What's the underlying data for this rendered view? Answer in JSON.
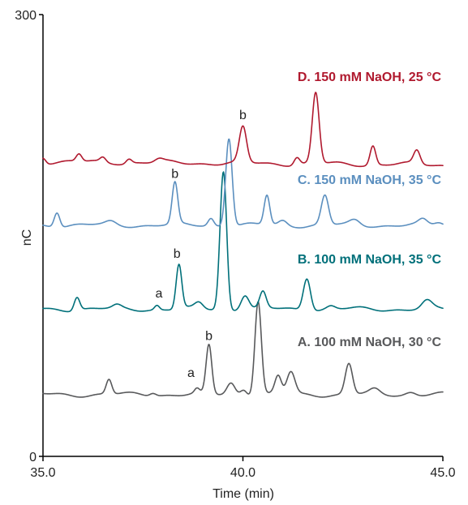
{
  "chart_data": {
    "type": "line",
    "xlabel": "Time (min)",
    "ylabel": "nC",
    "xlim": [
      35.0,
      45.0
    ],
    "ylim": [
      0,
      300
    ],
    "x_ticks": [
      {
        "value": 35.0,
        "label": "35.0"
      },
      {
        "value": 40.0,
        "label": "40.0"
      },
      {
        "value": 45.0,
        "label": "45.0"
      }
    ],
    "y_ticks": [
      {
        "value": 0,
        "label": "0"
      },
      {
        "value": 300,
        "label": "300"
      }
    ],
    "grid": false,
    "series": [
      {
        "name": "A. 100 mM NaOH, 30 °C",
        "color": "#58595b",
        "baseline": 42,
        "drift": 0,
        "peaks": [
          [
            36.65,
            10,
            0.07
          ],
          [
            37.75,
            2,
            0.08
          ],
          [
            38.85,
            3,
            0.06
          ],
          [
            39.15,
            33,
            0.07
          ],
          [
            39.7,
            8,
            0.1
          ],
          [
            40.02,
            4,
            0.08
          ],
          [
            40.38,
            64,
            0.08
          ],
          [
            40.88,
            12,
            0.08
          ],
          [
            41.2,
            15,
            0.1
          ],
          [
            42.65,
            21,
            0.09
          ],
          [
            43.3,
            3,
            0.12
          ],
          [
            44.2,
            2,
            0.12
          ]
        ]
      },
      {
        "name": "B. 100 mM NaOH, 35 °C",
        "color": "#00707a",
        "baseline": 100,
        "drift": 0,
        "peaks": [
          [
            35.85,
            9,
            0.07
          ],
          [
            36.85,
            2,
            0.1
          ],
          [
            37.85,
            3,
            0.06
          ],
          [
            38.4,
            30,
            0.07
          ],
          [
            38.9,
            4,
            0.1
          ],
          [
            39.48,
            60,
            0.075
          ],
          [
            39.55,
            45,
            0.07
          ],
          [
            40.05,
            10,
            0.1
          ],
          [
            40.5,
            11,
            0.08
          ],
          [
            41.6,
            22,
            0.09
          ],
          [
            42.2,
            2,
            0.1
          ],
          [
            44.6,
            5,
            0.12
          ]
        ]
      },
      {
        "name": "C. 150 mM NaOH, 35 °C",
        "color": "#5b8fbf",
        "baseline": 157,
        "drift": 0,
        "peaks": [
          [
            35.35,
            10,
            0.07
          ],
          [
            36.7,
            2,
            0.12
          ],
          [
            38.3,
            28,
            0.07
          ],
          [
            39.2,
            5,
            0.07
          ],
          [
            39.65,
            60,
            0.08
          ],
          [
            40.6,
            20,
            0.07
          ],
          [
            41.0,
            3,
            0.1
          ],
          [
            42.05,
            20,
            0.09
          ],
          [
            42.8,
            3,
            0.12
          ],
          [
            44.5,
            3,
            0.1
          ],
          [
            44.9,
            2,
            0.1
          ]
        ]
      },
      {
        "name": "D. 150 mM NaOH, 25 °C",
        "color": "#b0192e",
        "baseline": 200,
        "drift": -2,
        "peaks": [
          [
            35.0,
            4,
            0.07
          ],
          [
            35.9,
            5,
            0.07
          ],
          [
            36.5,
            3,
            0.07
          ],
          [
            37.15,
            3,
            0.07
          ],
          [
            37.9,
            2,
            0.1
          ],
          [
            40.0,
            24,
            0.09
          ],
          [
            41.35,
            5,
            0.07
          ],
          [
            41.82,
            48,
            0.085
          ],
          [
            43.25,
            13,
            0.07
          ],
          [
            44.35,
            9,
            0.08
          ]
        ]
      }
    ],
    "annotations": [
      {
        "text": "a",
        "x": 38.7,
        "y": 54
      },
      {
        "text": "b",
        "x": 39.15,
        "y": 79
      },
      {
        "text": "a",
        "x": 37.9,
        "y": 108
      },
      {
        "text": "b",
        "x": 38.35,
        "y": 135
      },
      {
        "text": "b",
        "x": 38.3,
        "y": 189
      },
      {
        "text": "b",
        "x": 40.0,
        "y": 229
      }
    ],
    "series_labels": [
      {
        "series": 0,
        "text": "A. 100 mM NaOH, 30 °C",
        "y": 75
      },
      {
        "series": 1,
        "text": "B. 100 mM NaOH, 35 °C",
        "y": 131
      },
      {
        "series": 2,
        "text": "C. 150 mM NaOH, 35 °C",
        "y": 185
      },
      {
        "series": 3,
        "text": "D. 150 mM NaOH, 25 °C",
        "y": 255
      }
    ]
  }
}
